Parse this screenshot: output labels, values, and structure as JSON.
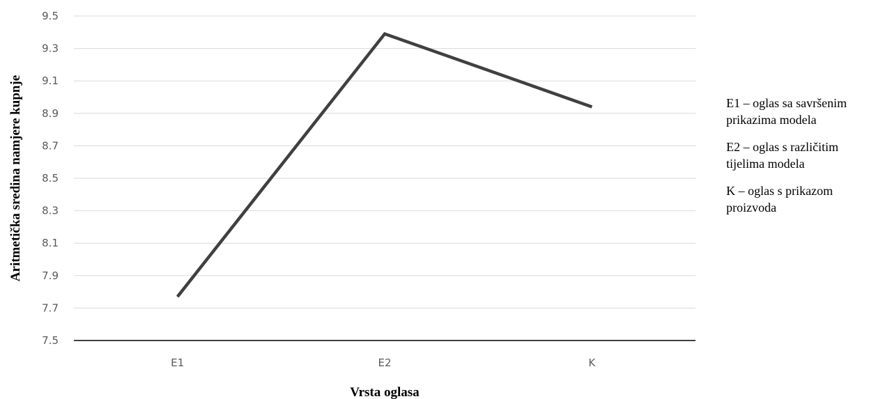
{
  "chart_data": {
    "type": "line",
    "categories": [
      "E1",
      "E2",
      "K"
    ],
    "series": [
      {
        "values": [
          7.77,
          9.39,
          8.94
        ]
      }
    ],
    "xlabel": "Vrsta oglasa",
    "ylabel": "Aritmetička sredina namjere kupnje",
    "ylim": [
      7.5,
      9.5
    ],
    "yticks": [
      "7.5",
      "7.7",
      "7.9",
      "8.1",
      "8.3",
      "8.5",
      "8.7",
      "8.9",
      "9.1",
      "9.3",
      "9.5"
    ],
    "grid": true,
    "legend_position": "right",
    "line_color": "#404040",
    "grid_color": "#d9d9d9"
  },
  "legend": {
    "entries": [
      {
        "line1": "E1 – oglas sa savršenim",
        "line2": "prikazima modela"
      },
      {
        "line1": "E2 – oglas s različitim",
        "line2": "tijelima modela"
      },
      {
        "line1": "K – oglas s prikazom",
        "line2": "proizvoda"
      }
    ]
  }
}
